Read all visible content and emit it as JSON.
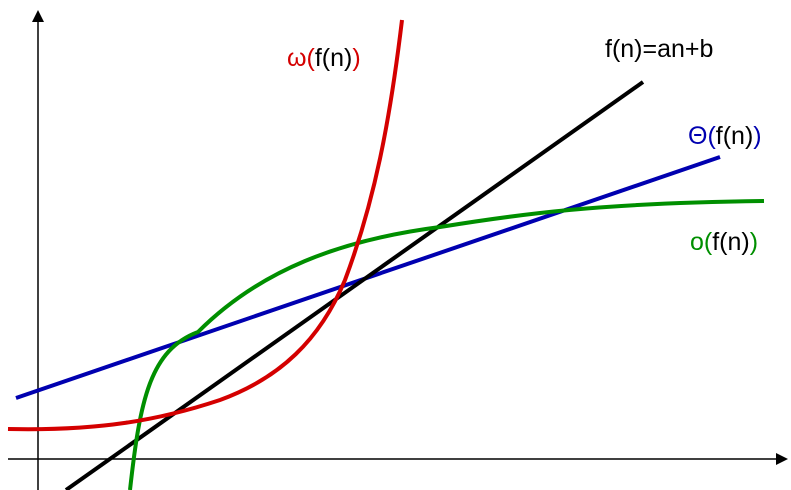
{
  "labels": {
    "omega": {
      "sym": "ω(",
      "fn": "f(n)",
      "close": ")"
    },
    "line": "f(n)=an+b",
    "theta": {
      "sym": "Θ(",
      "fn": "f(n)",
      "close": ")"
    },
    "little_o": {
      "sym": "o(",
      "fn": "f(n)",
      "close": ")"
    }
  },
  "colors": {
    "omega": "#d40000",
    "line": "#000000",
    "theta": "#0000b0",
    "little_o": "#008f00",
    "axes": "#000000"
  }
}
